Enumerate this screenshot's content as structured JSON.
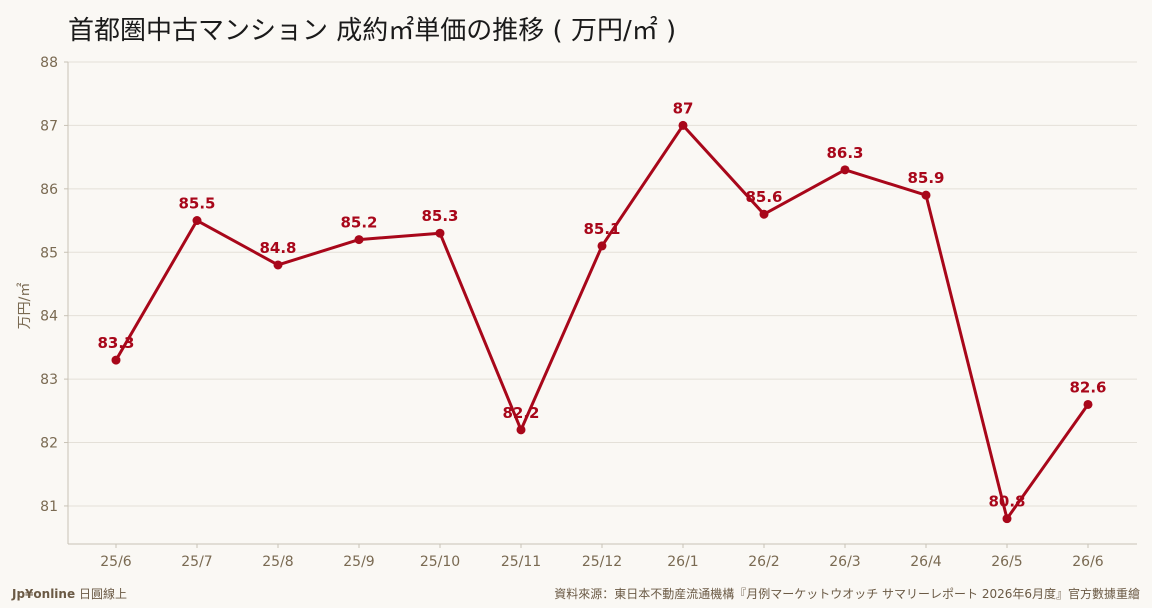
{
  "page": {
    "title": "首都圏中古マンション 成約㎡単価の推移 ( 万円/㎡ )",
    "footer_brand": "Jp¥online",
    "footer_brand_suffix": "日圓線上",
    "footer_source": "資料來源：東日本不動産流通機構『月例マーケットウオッチ サマリーレポート 2026年6月度』官方數據重繪"
  },
  "colors": {
    "line": "#a8071a",
    "grid": "#e4e0d8",
    "axis": "#c8c2b6",
    "tick": "#7a6a52"
  },
  "chart_data": {
    "type": "line",
    "title": "首都圏中古マンション 成約㎡単価の推移 ( 万円/㎡ )",
    "xlabel": "",
    "ylabel": "万円/㎡",
    "ylim": [
      80.4,
      88.0
    ],
    "yticks": [
      81,
      82,
      83,
      84,
      85,
      86,
      87,
      88
    ],
    "grid": true,
    "legend": "none",
    "categories": [
      "25/6",
      "25/7",
      "25/8",
      "25/9",
      "25/10",
      "25/11",
      "25/12",
      "26/1",
      "26/2",
      "26/3",
      "26/4",
      "26/5",
      "26/6"
    ],
    "series": [
      {
        "values": [
          83.3,
          85.5,
          84.8,
          85.2,
          85.3,
          82.2,
          85.1,
          87,
          85.6,
          86.3,
          85.9,
          80.8,
          82.6
        ],
        "labels": [
          "83.3",
          "85.5",
          "84.8",
          "85.2",
          "85.3",
          "82.2",
          "85.1",
          "87",
          "85.6",
          "86.3",
          "85.9",
          "80.8",
          "82.6"
        ]
      }
    ]
  }
}
